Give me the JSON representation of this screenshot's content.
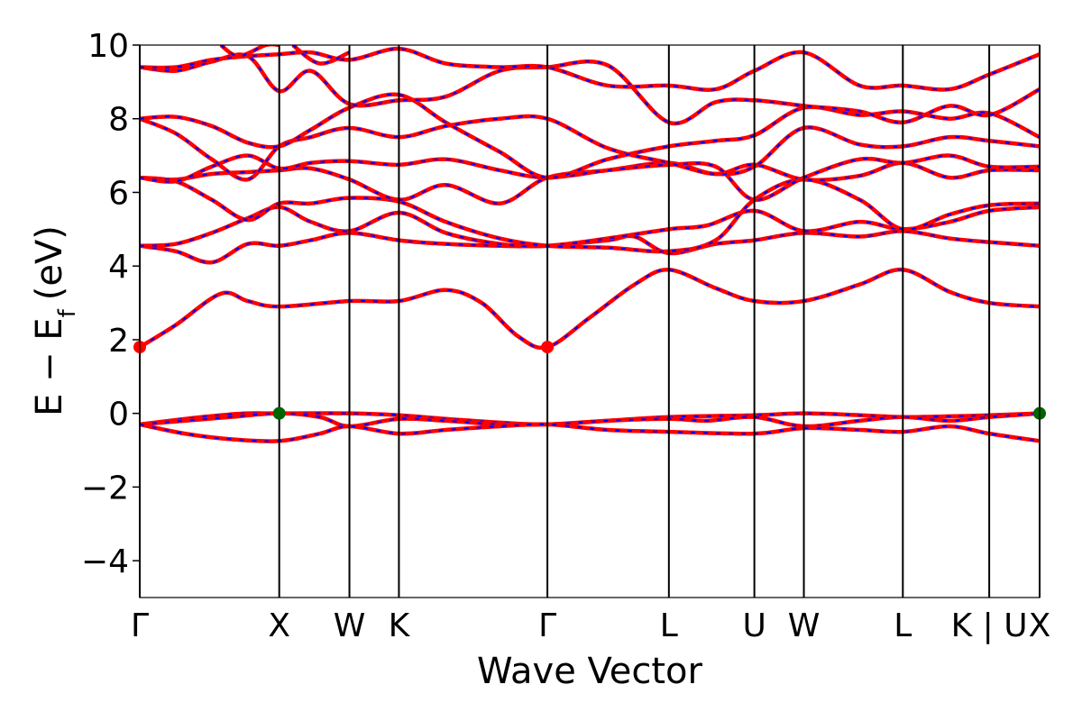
{
  "chart_data": {
    "type": "line",
    "title": "",
    "xlabel": "Wave Vector",
    "ylabel": "E − E",
    "ylabel_subscript": "f",
    "ylabel_unit": "(eV)",
    "ylim": [
      -5,
      10
    ],
    "y_ticks": [
      -4,
      -2,
      0,
      2,
      4,
      6,
      8,
      10
    ],
    "y_tick_labels": [
      "−4",
      "−2",
      "0",
      "2",
      "4",
      "6",
      "8",
      "10"
    ],
    "x_range": [
      0,
      1
    ],
    "grid": false,
    "legend": "none",
    "kpoints": [
      {
        "label": "Γ",
        "x": 0.0
      },
      {
        "label": "X",
        "x": 0.155
      },
      {
        "label": "W",
        "x": 0.233
      },
      {
        "label": "K",
        "x": 0.288
      },
      {
        "label": "Γ",
        "x": 0.453
      },
      {
        "label": "L",
        "x": 0.588
      },
      {
        "label": "U",
        "x": 0.683
      },
      {
        "label": "W",
        "x": 0.738
      },
      {
        "label": "L",
        "x": 0.848
      },
      {
        "label": "K | U",
        "x": 0.944
      },
      {
        "label": "X",
        "x": 1.0
      }
    ],
    "colors": {
      "up": "#ff0000",
      "down": "#0000ff",
      "cbm": "#ff0000",
      "vbm": "#006400"
    },
    "markers": [
      {
        "name": "cbm",
        "x": 0.0,
        "y": 1.8
      },
      {
        "name": "cbm",
        "x": 0.453,
        "y": 1.8
      },
      {
        "name": "vbm",
        "x": 0.155,
        "y": 0.0
      },
      {
        "name": "vbm",
        "x": 1.0,
        "y": 0.0
      }
    ],
    "series": [
      {
        "x": [
          0,
          0.05,
          0.09,
          0.12,
          0.155,
          0.233,
          0.288,
          0.34,
          0.4,
          0.453,
          0.52,
          0.588,
          0.683,
          0.738,
          0.8,
          0.848,
          0.9,
          0.944,
          1.0
        ],
        "y": [
          -0.3,
          -0.15,
          -0.05,
          0.0,
          0.0,
          0.0,
          -0.05,
          -0.15,
          -0.25,
          -0.3,
          -0.2,
          -0.1,
          -0.05,
          0.0,
          -0.05,
          -0.1,
          -0.08,
          -0.05,
          0.0
        ]
      },
      {
        "x": [
          0,
          0.05,
          0.1,
          0.155,
          0.2,
          0.233,
          0.288,
          0.34,
          0.4,
          0.453,
          0.52,
          0.588,
          0.63,
          0.683,
          0.738,
          0.8,
          0.848,
          0.9,
          0.944,
          1.0
        ],
        "y": [
          -0.3,
          -0.2,
          -0.1,
          0.0,
          -0.1,
          -0.35,
          -0.15,
          -0.2,
          -0.3,
          -0.3,
          -0.2,
          -0.15,
          -0.2,
          -0.1,
          -0.35,
          -0.2,
          -0.1,
          -0.2,
          -0.1,
          0.0
        ]
      },
      {
        "x": [
          0,
          0.05,
          0.1,
          0.155,
          0.2,
          0.233,
          0.288,
          0.34,
          0.4,
          0.453,
          0.52,
          0.588,
          0.683,
          0.738,
          0.8,
          0.848,
          0.9,
          0.944,
          1.0
        ],
        "y": [
          -0.3,
          -0.55,
          -0.7,
          -0.75,
          -0.55,
          -0.35,
          -0.55,
          -0.45,
          -0.35,
          -0.3,
          -0.45,
          -0.5,
          -0.55,
          -0.4,
          -0.45,
          -0.5,
          -0.35,
          -0.55,
          -0.75
        ]
      },
      {
        "x": [
          0,
          0.04,
          0.09,
          0.12,
          0.155,
          0.233,
          0.288,
          0.34,
          0.38,
          0.42,
          0.453,
          0.5,
          0.55,
          0.588,
          0.64,
          0.683,
          0.738,
          0.8,
          0.848,
          0.9,
          0.944,
          1.0
        ],
        "y": [
          1.8,
          2.4,
          3.25,
          3.05,
          2.9,
          3.05,
          3.05,
          3.35,
          3.0,
          2.1,
          1.8,
          2.6,
          3.5,
          3.9,
          3.4,
          3.05,
          3.05,
          3.5,
          3.9,
          3.3,
          3.0,
          2.9
        ]
      },
      {
        "x": [
          0,
          0.04,
          0.08,
          0.12,
          0.155,
          0.19,
          0.233,
          0.288,
          0.34,
          0.4,
          0.453,
          0.52,
          0.55,
          0.588,
          0.64,
          0.683,
          0.738,
          0.8,
          0.848,
          0.9,
          0.944,
          1.0
        ],
        "y": [
          4.55,
          4.4,
          4.1,
          4.6,
          4.55,
          4.7,
          4.9,
          4.7,
          4.6,
          4.55,
          4.55,
          4.7,
          4.8,
          4.35,
          4.6,
          4.7,
          4.9,
          4.8,
          4.95,
          4.75,
          4.65,
          4.55
        ]
      },
      {
        "x": [
          0,
          0.04,
          0.08,
          0.12,
          0.155,
          0.19,
          0.233,
          0.288,
          0.34,
          0.4,
          0.453,
          0.52,
          0.588,
          0.63,
          0.683,
          0.738,
          0.8,
          0.848,
          0.9,
          0.944,
          1.0
        ],
        "y": [
          4.55,
          4.6,
          4.9,
          5.3,
          5.6,
          5.2,
          4.95,
          5.45,
          4.9,
          4.6,
          4.55,
          4.75,
          5.0,
          5.1,
          5.5,
          4.95,
          5.2,
          5.0,
          5.2,
          5.5,
          5.6
        ]
      },
      {
        "x": [
          0,
          0.04,
          0.08,
          0.12,
          0.155,
          0.19,
          0.233,
          0.288,
          0.34,
          0.4,
          0.453,
          0.52,
          0.588,
          0.64,
          0.683,
          0.738,
          0.8,
          0.848,
          0.9,
          0.944,
          1.0
        ],
        "y": [
          6.4,
          6.3,
          5.8,
          5.25,
          5.7,
          5.7,
          5.85,
          5.75,
          5.2,
          4.75,
          4.55,
          4.5,
          4.4,
          4.7,
          5.8,
          6.35,
          5.8,
          5.0,
          5.4,
          5.65,
          5.7
        ]
      },
      {
        "x": [
          0,
          0.04,
          0.08,
          0.12,
          0.155,
          0.19,
          0.233,
          0.288,
          0.34,
          0.4,
          0.453,
          0.52,
          0.588,
          0.64,
          0.683,
          0.738,
          0.8,
          0.848,
          0.9,
          0.944,
          1.0
        ],
        "y": [
          6.4,
          6.35,
          6.5,
          6.55,
          6.6,
          6.65,
          6.35,
          5.8,
          6.2,
          5.7,
          6.4,
          6.6,
          6.8,
          6.5,
          6.75,
          6.35,
          6.45,
          6.8,
          6.4,
          6.6,
          6.6
        ]
      },
      {
        "x": [
          0,
          0.04,
          0.08,
          0.12,
          0.155,
          0.19,
          0.233,
          0.288,
          0.34,
          0.4,
          0.453,
          0.52,
          0.588,
          0.64,
          0.683,
          0.738,
          0.8,
          0.848,
          0.9,
          0.944,
          1.0
        ],
        "y": [
          6.4,
          6.3,
          6.7,
          7.0,
          6.65,
          6.8,
          6.85,
          6.75,
          6.9,
          6.6,
          6.4,
          6.6,
          6.75,
          6.7,
          5.8,
          6.4,
          6.9,
          6.8,
          7.0,
          6.7,
          6.7
        ]
      },
      {
        "x": [
          0,
          0.04,
          0.08,
          0.12,
          0.155,
          0.19,
          0.233,
          0.288,
          0.34,
          0.4,
          0.453,
          0.52,
          0.588,
          0.64,
          0.683,
          0.738,
          0.8,
          0.848,
          0.9,
          0.944,
          1.0
        ],
        "y": [
          8.0,
          7.6,
          6.9,
          6.35,
          7.25,
          7.5,
          7.75,
          7.5,
          7.8,
          8.0,
          8.0,
          7.2,
          6.8,
          6.5,
          6.7,
          7.75,
          7.3,
          7.25,
          7.5,
          7.4,
          7.25
        ]
      },
      {
        "x": [
          0,
          0.04,
          0.08,
          0.12,
          0.155,
          0.19,
          0.233,
          0.288,
          0.34,
          0.4,
          0.453,
          0.52,
          0.588,
          0.64,
          0.683,
          0.738,
          0.8,
          0.848,
          0.9,
          0.944,
          1.0
        ],
        "y": [
          8.0,
          8.05,
          7.8,
          7.35,
          7.25,
          7.7,
          8.3,
          8.65,
          7.9,
          7.1,
          6.4,
          6.9,
          7.25,
          7.4,
          7.55,
          8.3,
          8.1,
          8.2,
          8.0,
          8.15,
          7.5
        ]
      },
      {
        "x": [
          0,
          0.04,
          0.08,
          0.12,
          0.155,
          0.19,
          0.233,
          0.288,
          0.34,
          0.4,
          0.453,
          0.52,
          0.588,
          0.64,
          0.683,
          0.738,
          0.8,
          0.848,
          0.9,
          0.944,
          1.0
        ],
        "y": [
          9.4,
          9.3,
          9.55,
          9.7,
          8.75,
          9.3,
          8.4,
          8.5,
          8.6,
          9.3,
          9.4,
          9.45,
          7.9,
          8.45,
          8.5,
          8.35,
          8.2,
          7.9,
          8.35,
          8.1,
          8.8
        ]
      },
      {
        "x": [
          0,
          0.04,
          0.08,
          0.12,
          0.155,
          0.19,
          0.233,
          0.288,
          0.34,
          0.4,
          0.453,
          0.52,
          0.588,
          0.64,
          0.683,
          0.738,
          0.8,
          0.848,
          0.9,
          0.944,
          1.0
        ],
        "y": [
          9.4,
          9.4,
          9.6,
          9.7,
          9.75,
          9.8,
          9.6,
          9.9,
          9.5,
          9.4,
          9.4,
          8.9,
          8.9,
          8.8,
          9.3,
          9.8,
          8.9,
          8.9,
          8.8,
          9.2,
          9.75
        ]
      },
      {
        "x": [
          0.09,
          0.11,
          0.14,
          0.155
        ],
        "y": [
          10.0,
          9.7,
          10.0,
          10.0
        ]
      },
      {
        "x": [
          0.17,
          0.2,
          0.233
        ],
        "y": [
          10.0,
          9.5,
          9.8
        ]
      }
    ]
  }
}
